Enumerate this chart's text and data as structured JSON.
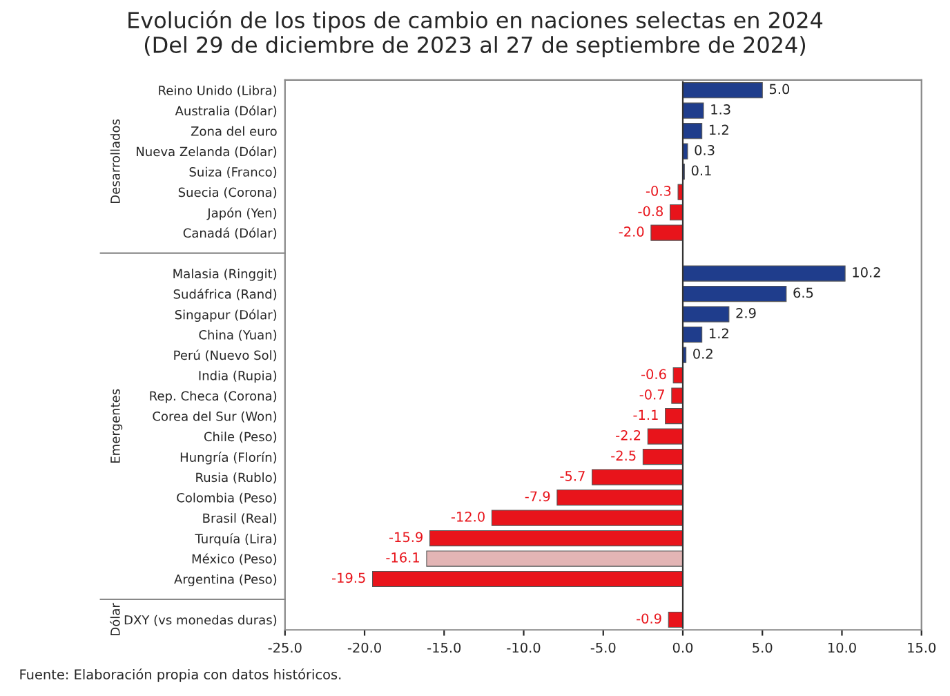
{
  "chart_data": {
    "type": "bar",
    "orientation": "horizontal",
    "title": "Evolución de los tipos de cambio en naciones selectas en 2024\n(Del 29 de diciembre de 2023 al 27 de septiembre de 2024)",
    "categories": [
      "Reino Unido (Libra)",
      "Australia (Dólar)",
      "Zona del euro",
      "Nueva Zelanda (Dólar)",
      "Suiza (Franco)",
      "Suecia (Corona)",
      "Japón (Yen)",
      "Canadá (Dólar)",
      null,
      "Malasia (Ringgit)",
      "Sudáfrica (Rand)",
      "Singapur (Dólar)",
      "China (Yuan)",
      "Perú (Nuevo Sol)",
      "India (Rupia)",
      "Rep. Checa (Corona)",
      "Corea del Sur (Won)",
      "Chile (Peso)",
      "Hungría (Florín)",
      "Rusia (Rublo)",
      "Colombia (Peso)",
      "Brasil (Real)",
      "Turquía (Lira)",
      "México (Peso)",
      "Argentina (Peso)",
      null,
      "DXY (vs monedas duras)"
    ],
    "values": [
      5.0,
      1.3,
      1.2,
      0.3,
      0.1,
      -0.3,
      -0.8,
      -2.0,
      null,
      10.2,
      6.5,
      2.9,
      1.2,
      0.2,
      -0.6,
      -0.7,
      -1.1,
      -2.2,
      -2.5,
      -5.7,
      -7.9,
      -12.0,
      -15.9,
      -16.1,
      -19.5,
      null,
      -0.9
    ],
    "value_labels": [
      "5.0",
      "1.3",
      "1.2",
      "0.3",
      "0.1",
      "-0.3",
      "-0.8",
      "-2.0",
      null,
      "10.2",
      "6.5",
      "2.9",
      "1.2",
      "0.2",
      "-0.6",
      "-0.7",
      "-1.1",
      "-2.2",
      "-2.5",
      "-5.7",
      "-7.9",
      "-12.0",
      "-15.9",
      "-16.1",
      "-19.5",
      null,
      "-0.9"
    ],
    "colors": [
      "#1f3d8c",
      "#1f3d8c",
      "#1f3d8c",
      "#1f3d8c",
      "#1f3d8c",
      "#e8141b",
      "#e8141b",
      "#e8141b",
      "#ffffff",
      "#1f3d8c",
      "#1f3d8c",
      "#1f3d8c",
      "#1f3d8c",
      "#1f3d8c",
      "#e8141b",
      "#e8141b",
      "#e8141b",
      "#e8141b",
      "#e8141b",
      "#e8141b",
      "#e8141b",
      "#e8141b",
      "#e8141b",
      "#e3b5b5",
      "#e8141b",
      "#ffffff",
      "#e8141b"
    ],
    "xlim": [
      -25,
      15
    ],
    "xticks": [
      {
        "value": -25,
        "label": "-25.0"
      },
      {
        "value": -20,
        "label": "-20.0"
      },
      {
        "value": -15,
        "label": "-15.0"
      },
      {
        "value": -10,
        "label": "-10.0"
      },
      {
        "value": -5,
        "label": "-5.0"
      },
      {
        "value": 0,
        "label": "0.0"
      },
      {
        "value": 5,
        "label": "5.0"
      },
      {
        "value": 10,
        "label": "10.0"
      },
      {
        "value": 15,
        "label": "15.0"
      }
    ],
    "legend": false,
    "annotations": [
      "Desarrollados",
      "Emergentes",
      "Dólar",
      "Fuente: Elaboración propia con datos históricos."
    ]
  }
}
